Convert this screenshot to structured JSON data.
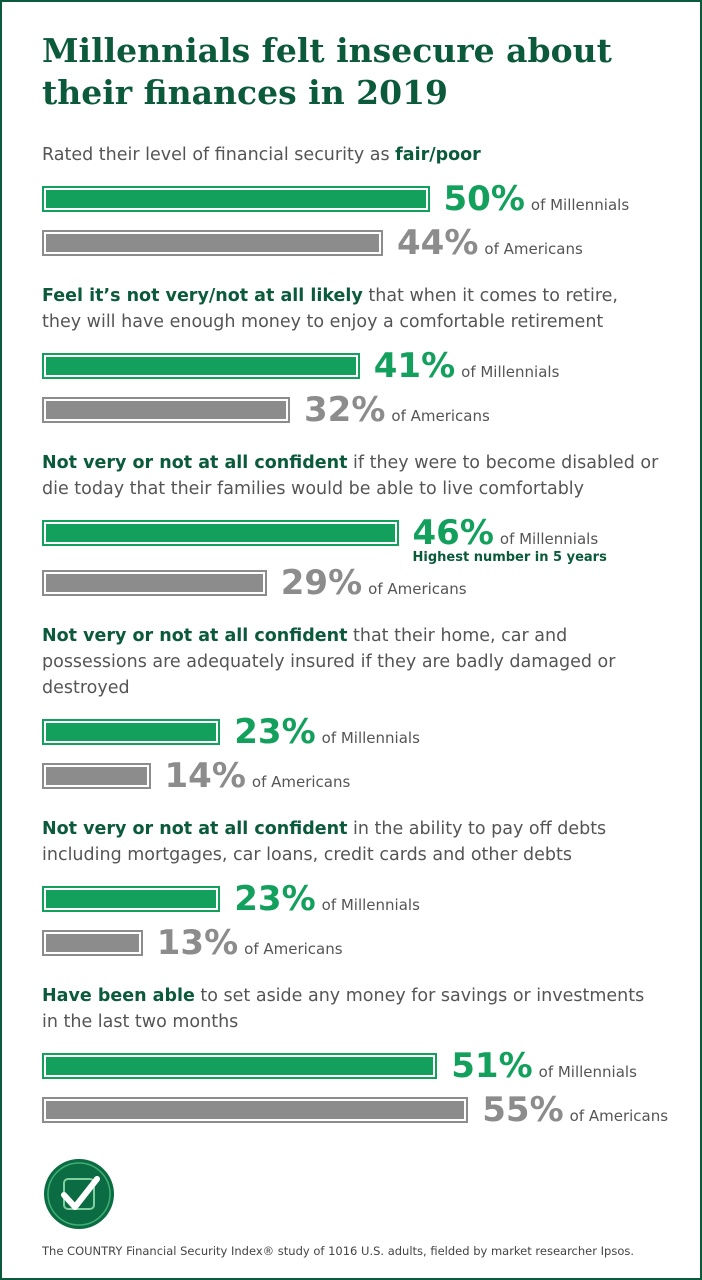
{
  "title": "Millennials felt insecure about their finances in 2019",
  "chart_data": [
    {
      "type": "bar",
      "subtitle_parts": [
        {
          "text": "Rated their level of financial security as ",
          "bold": false
        },
        {
          "text": "fair/poor",
          "bold": true
        }
      ],
      "series": [
        {
          "name": "of Millennials",
          "color": "#12a05c",
          "values": [
            50
          ],
          "value_labels": [
            "50%"
          ]
        },
        {
          "name": "of Americans",
          "color": "#8c8c8c",
          "values": [
            44
          ],
          "value_labels": [
            "44%"
          ]
        }
      ]
    },
    {
      "type": "bar",
      "subtitle_parts": [
        {
          "text": "Feel it’s not very/not at all likely",
          "bold": true
        },
        {
          "text": " that when it comes to retire, they will have enough money to enjoy a comfortable retirement",
          "bold": false
        }
      ],
      "series": [
        {
          "name": "of Millennials",
          "color": "#12a05c",
          "values": [
            41
          ],
          "value_labels": [
            "41%"
          ]
        },
        {
          "name": "of Americans",
          "color": "#8c8c8c",
          "values": [
            32
          ],
          "value_labels": [
            "32%"
          ]
        }
      ]
    },
    {
      "type": "bar",
      "subtitle_parts": [
        {
          "text": "Not very or not at all confident",
          "bold": true
        },
        {
          "text": " if they were to become disabled or die today that their families would be able to live comfortably",
          "bold": false
        }
      ],
      "series": [
        {
          "name": "of Millennials",
          "color": "#12a05c",
          "values": [
            46
          ],
          "value_labels": [
            "46%"
          ]
        },
        {
          "name": "of Americans",
          "color": "#8c8c8c",
          "values": [
            29
          ],
          "value_labels": [
            "29%"
          ]
        }
      ],
      "annotation": "Highest number in 5 years"
    },
    {
      "type": "bar",
      "subtitle_parts": [
        {
          "text": "Not very or not at all confident",
          "bold": true
        },
        {
          "text": " that their home, car and possessions are adequately insured if they are badly damaged or destroyed",
          "bold": false
        }
      ],
      "series": [
        {
          "name": "of Millennials",
          "color": "#12a05c",
          "values": [
            23
          ],
          "value_labels": [
            "23%"
          ]
        },
        {
          "name": "of Americans",
          "color": "#8c8c8c",
          "values": [
            14
          ],
          "value_labels": [
            "14%"
          ]
        }
      ]
    },
    {
      "type": "bar",
      "subtitle_parts": [
        {
          "text": "Not very or not at all confident",
          "bold": true
        },
        {
          "text": " in the ability to pay off debts including mortgages, car loans, credit cards and other debts",
          "bold": false
        }
      ],
      "series": [
        {
          "name": "of Millennials",
          "color": "#12a05c",
          "values": [
            23
          ],
          "value_labels": [
            "23%"
          ]
        },
        {
          "name": "of Americans",
          "color": "#8c8c8c",
          "values": [
            13
          ],
          "value_labels": [
            "13%"
          ]
        }
      ]
    },
    {
      "type": "bar",
      "subtitle_parts": [
        {
          "text": "Have been able",
          "bold": true
        },
        {
          "text": " to set aside any money for savings or investments in the last two months",
          "bold": false
        }
      ],
      "series": [
        {
          "name": "of Millennials",
          "color": "#12a05c",
          "values": [
            51
          ],
          "value_labels": [
            "51%"
          ]
        },
        {
          "name": "of Americans",
          "color": "#8c8c8c",
          "values": [
            55
          ],
          "value_labels": [
            "55%"
          ]
        }
      ]
    }
  ],
  "footer": "The COUNTRY Financial Security Index® study of 1016 U.S. adults, fielded by market researcher Ipsos."
}
